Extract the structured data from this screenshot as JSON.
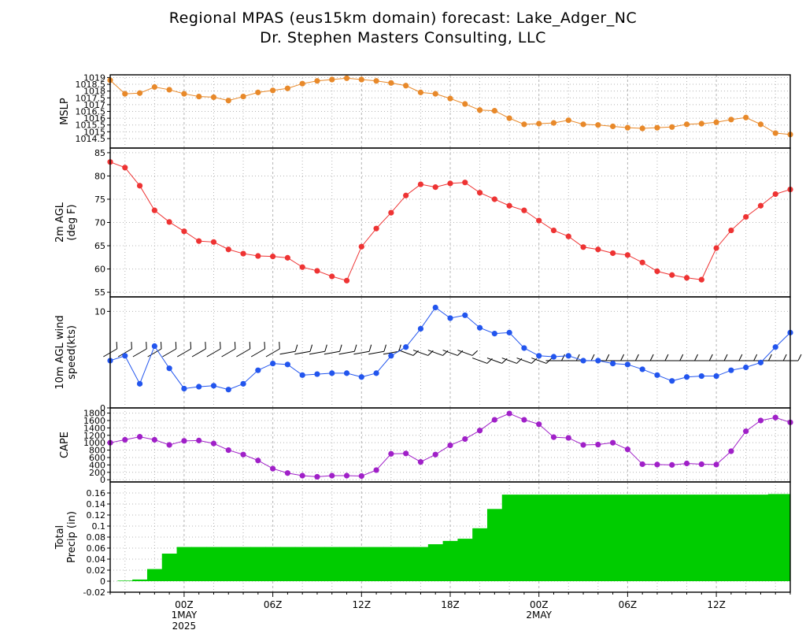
{
  "header": {
    "title": "Regional MPAS (eus15km domain) forecast: Lake_Adger_NC",
    "subtitle": "Dr. Stephen Masters Consulting, LLC"
  },
  "colors": {
    "mslp": "#e8892a",
    "temp": "#ee3333",
    "wind": "#2255ee",
    "cape": "#a020c8",
    "precip": "#00cc00",
    "grid": "#b4b4b4"
  },
  "chart_data": [
    {
      "type": "line",
      "ylabel": "MSLP",
      "ylim": [
        1013.8,
        1019.2
      ],
      "yticks": [
        1014.5,
        1015,
        1015.5,
        1016,
        1016.5,
        1017,
        1017.5,
        1018,
        1018.5,
        1019
      ],
      "values": [
        1018.8,
        1017.8,
        1017.85,
        1018.3,
        1018.1,
        1017.8,
        1017.6,
        1017.55,
        1017.3,
        1017.6,
        1017.9,
        1018.05,
        1018.2,
        1018.55,
        1018.75,
        1018.85,
        1018.95,
        1018.85,
        1018.75,
        1018.6,
        1018.4,
        1017.9,
        1017.8,
        1017.45,
        1017.05,
        1016.6,
        1016.55,
        1016.0,
        1015.55,
        1015.6,
        1015.65,
        1015.85,
        1015.55,
        1015.5,
        1015.4,
        1015.3,
        1015.25,
        1015.3,
        1015.35,
        1015.55,
        1015.6,
        1015.7,
        1015.9,
        1016.05,
        1015.55,
        1014.9,
        1014.8
      ],
      "grid": true
    },
    {
      "type": "line",
      "ylabel": "2m AGL (deg F)",
      "ylim": [
        54,
        86
      ],
      "yticks": [
        55,
        60,
        65,
        70,
        75,
        80,
        85
      ],
      "values": [
        83.0,
        81.8,
        77.9,
        72.6,
        70.1,
        68.1,
        66.0,
        65.8,
        64.2,
        63.3,
        62.8,
        62.7,
        62.4,
        60.4,
        59.6,
        58.4,
        57.5,
        64.8,
        68.7,
        72.1,
        75.8,
        78.2,
        77.6,
        78.4,
        78.6,
        76.4,
        75.0,
        73.6,
        72.6,
        70.4,
        68.3,
        67.0,
        64.7,
        64.2,
        63.4,
        63.0,
        61.4,
        59.5,
        58.7,
        58.1,
        57.7,
        64.5,
        68.3,
        71.2,
        73.6,
        76.1,
        77.1
      ],
      "grid": true
    },
    {
      "type": "line",
      "ylabel": "10m AGL wind speed(kts)",
      "ylim": [
        0,
        11.5
      ],
      "yticks": [
        0,
        10
      ],
      "values": [
        4.9,
        5.4,
        2.5,
        6.4,
        4.1,
        2.0,
        2.2,
        2.3,
        1.9,
        2.5,
        3.9,
        4.6,
        4.5,
        3.4,
        3.5,
        3.6,
        3.6,
        3.2,
        3.6,
        5.4,
        6.3,
        8.2,
        10.4,
        9.3,
        9.6,
        8.3,
        7.7,
        7.8,
        6.2,
        5.4,
        5.3,
        5.4,
        4.9,
        4.9,
        4.6,
        4.5,
        4.0,
        3.4,
        2.8,
        3.2,
        3.3,
        3.3,
        3.9,
        4.2,
        4.7,
        6.3,
        7.8
      ],
      "grid": true
    },
    {
      "type": "line",
      "ylabel": "CAPE",
      "ylim": [
        -60,
        1940
      ],
      "yticks": [
        0,
        200,
        400,
        600,
        800,
        1000,
        1200,
        1400,
        1600,
        1800
      ],
      "values": [
        1000,
        1080,
        1160,
        1080,
        940,
        1050,
        1060,
        980,
        800,
        680,
        520,
        300,
        180,
        110,
        80,
        110,
        110,
        100,
        260,
        700,
        710,
        480,
        680,
        930,
        1100,
        1330,
        1620,
        1790,
        1620,
        1500,
        1150,
        1130,
        940,
        950,
        1000,
        820,
        420,
        410,
        400,
        440,
        420,
        410,
        770,
        1310,
        1600,
        1680,
        1550
      ],
      "grid": true
    },
    {
      "type": "bar",
      "ylabel": "Total Precip (in)",
      "ylim": [
        -0.02,
        0.18
      ],
      "yticks": [
        -0.02,
        0,
        0.02,
        0.04,
        0.06,
        0.08,
        0.1,
        0.12,
        0.14,
        0.16
      ],
      "values": [
        0,
        0.001,
        0.003,
        0.022,
        0.05,
        0.062,
        0.062,
        0.062,
        0.062,
        0.062,
        0.062,
        0.062,
        0.062,
        0.062,
        0.062,
        0.062,
        0.062,
        0.062,
        0.062,
        0.062,
        0.062,
        0.062,
        0.067,
        0.073,
        0.077,
        0.096,
        0.131,
        0.157,
        0.157,
        0.157,
        0.157,
        0.157,
        0.157,
        0.157,
        0.157,
        0.157,
        0.157,
        0.157,
        0.157,
        0.157,
        0.157,
        0.157,
        0.157,
        0.157,
        0.157,
        0.158,
        0.158
      ],
      "grid": true
    }
  ],
  "x_axis": {
    "ticks": [
      {
        "index": 5,
        "label": "00Z",
        "sub": "1MAY",
        "sub2": "2025"
      },
      {
        "index": 11,
        "label": "06Z"
      },
      {
        "index": 17,
        "label": "12Z"
      },
      {
        "index": 23,
        "label": "18Z"
      },
      {
        "index": 29,
        "label": "00Z",
        "sub": "2MAY"
      },
      {
        "index": 35,
        "label": "06Z"
      },
      {
        "index": 41,
        "label": "12Z"
      }
    ]
  }
}
